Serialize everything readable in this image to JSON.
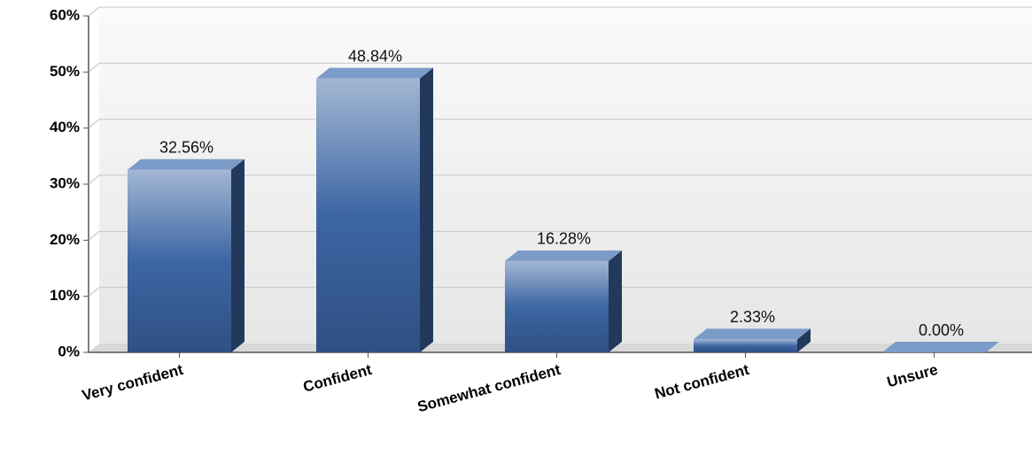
{
  "chart_data": {
    "type": "bar",
    "categories": [
      "Very confident",
      "Confident",
      "Somewhat confident",
      "Not confident",
      "Unsure"
    ],
    "values": [
      32.56,
      48.84,
      16.28,
      2.33,
      0.0
    ],
    "value_labels": [
      "32.56%",
      "48.84%",
      "16.28%",
      "2.33%",
      "0.00%"
    ],
    "color": "#3d66a3",
    "ylim": [
      0,
      60
    ],
    "yticks": [
      {
        "value": 0,
        "label": "0%"
      },
      {
        "value": 10,
        "label": "10%"
      },
      {
        "value": 20,
        "label": "20%"
      },
      {
        "value": 30,
        "label": "30%"
      },
      {
        "value": 40,
        "label": "40%"
      },
      {
        "value": 50,
        "label": "50%"
      },
      {
        "value": 60,
        "label": "60%"
      }
    ],
    "grid": true
  }
}
